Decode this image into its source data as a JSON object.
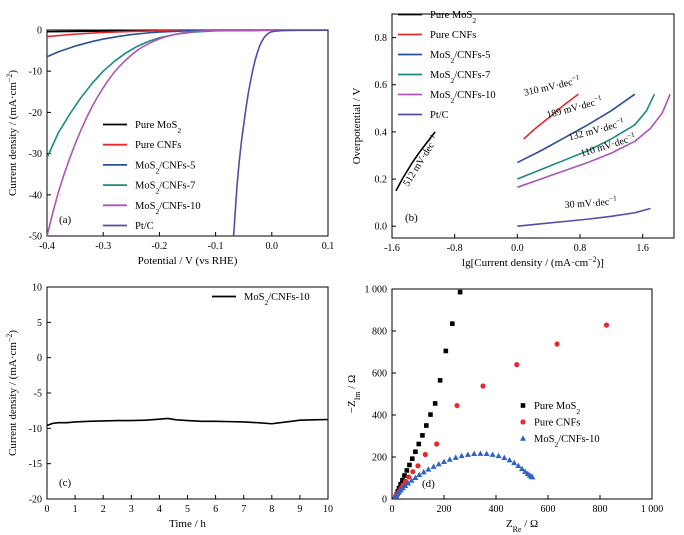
{
  "chart_data": [
    {
      "panel": "a",
      "type": "line",
      "panel_label": "(a)",
      "xlabel": "Potential / V (vs RHE)",
      "ylabel": "Current density / (mA·cm⁻²)",
      "xlim": [
        -0.4,
        0.1
      ],
      "ylim": [
        -50,
        0
      ],
      "xticks": [
        -0.4,
        -0.3,
        -0.2,
        -0.1,
        0.0,
        0.1
      ],
      "xtick_labels": [
        "-0.4",
        "-0.3",
        "-0.2",
        "-0.1",
        "0.0",
        "0.1"
      ],
      "yticks": [
        0,
        -10,
        -20,
        -30,
        -40,
        -50
      ],
      "ytick_labels": [
        "0",
        "-10",
        "-20",
        "-30",
        "-40",
        "-50"
      ],
      "legend_position": "bottom-right",
      "series": [
        {
          "name": "Pure MoS₂",
          "color": "#000000",
          "x": [
            -0.4,
            -0.3,
            -0.2,
            -0.1,
            0.0,
            0.1
          ],
          "y": [
            -0.4,
            -0.25,
            -0.15,
            -0.1,
            -0.05,
            -0.03
          ]
        },
        {
          "name": "Pure CNFs",
          "color": "#e8282c",
          "x": [
            -0.4,
            -0.35,
            -0.3,
            -0.25,
            -0.2,
            -0.1,
            0.0,
            0.1
          ],
          "y": [
            -1.6,
            -1.0,
            -0.6,
            -0.35,
            -0.2,
            -0.1,
            -0.05,
            -0.03
          ]
        },
        {
          "name": "MoS₂/CNFs-5",
          "color": "#2a4f9c",
          "x": [
            -0.4,
            -0.38,
            -0.35,
            -0.32,
            -0.3,
            -0.27,
            -0.25,
            -0.22,
            -0.2,
            -0.15,
            -0.1,
            0.0,
            0.1
          ],
          "y": [
            -6.5,
            -5.3,
            -3.9,
            -2.8,
            -2.2,
            -1.5,
            -1.1,
            -0.7,
            -0.5,
            -0.2,
            -0.1,
            -0.05,
            -0.03
          ]
        },
        {
          "name": "MoS₂/CNFs-7",
          "color": "#1c8a7e",
          "x": [
            -0.4,
            -0.39,
            -0.38,
            -0.36,
            -0.34,
            -0.32,
            -0.3,
            -0.28,
            -0.26,
            -0.24,
            -0.22,
            -0.2,
            -0.17,
            -0.14,
            -0.1,
            -0.05,
            0.0,
            0.1
          ],
          "y": [
            -31,
            -28,
            -25,
            -20.5,
            -16.5,
            -13,
            -10,
            -7.6,
            -5.6,
            -4.0,
            -2.8,
            -1.9,
            -1.0,
            -0.5,
            -0.2,
            -0.1,
            -0.05,
            -0.03
          ]
        },
        {
          "name": "MoS₂/CNFs-10",
          "color": "#b054b8",
          "x": [
            -0.4,
            -0.39,
            -0.38,
            -0.37,
            -0.36,
            -0.35,
            -0.34,
            -0.33,
            -0.32,
            -0.31,
            -0.3,
            -0.29,
            -0.28,
            -0.27,
            -0.26,
            -0.25,
            -0.24,
            -0.23,
            -0.22,
            -0.21,
            -0.2,
            -0.19,
            -0.18,
            -0.17,
            -0.16,
            -0.15,
            -0.14,
            -0.13,
            -0.12,
            -0.11,
            -0.1,
            -0.05,
            0.0,
            0.1
          ],
          "y": [
            -50,
            -44.5,
            -39.5,
            -35.2,
            -31.3,
            -27.7,
            -24.4,
            -21.4,
            -18.7,
            -16.2,
            -14.0,
            -12.0,
            -10.2,
            -8.7,
            -7.3,
            -6.1,
            -5.0,
            -4.1,
            -3.35,
            -2.7,
            -2.15,
            -1.7,
            -1.3,
            -1.0,
            -0.75,
            -0.55,
            -0.4,
            -0.3,
            -0.22,
            -0.16,
            -0.12,
            -0.06,
            -0.04,
            -0.03
          ]
        },
        {
          "name": "Pt/C",
          "color": "#5a4aa6",
          "x": [
            -0.068,
            -0.065,
            -0.062,
            -0.058,
            -0.054,
            -0.05,
            -0.046,
            -0.042,
            -0.038,
            -0.034,
            -0.03,
            -0.026,
            -0.022,
            -0.018,
            -0.014,
            -0.01,
            -0.006,
            -0.002,
            0.005,
            0.02,
            0.05,
            0.1
          ],
          "y": [
            -50,
            -44,
            -38,
            -32,
            -27,
            -23,
            -19,
            -15.5,
            -12.5,
            -9.8,
            -7.5,
            -5.6,
            -4.0,
            -2.8,
            -1.9,
            -1.25,
            -0.8,
            -0.5,
            -0.3,
            -0.15,
            -0.08,
            -0.05
          ]
        }
      ]
    },
    {
      "panel": "b",
      "type": "line",
      "panel_label": "(b)",
      "xlabel": "lg[Current density / (mA·cm⁻²)]",
      "ylabel": "Overpotential / V",
      "xlim": [
        -1.6,
        2.0
      ],
      "ylim": [
        -0.05,
        0.9
      ],
      "xticks": [
        -1.6,
        -0.8,
        0.0,
        0.8,
        1.6
      ],
      "xtick_labels": [
        "-1.6",
        "-0.8",
        "0.0",
        "0.8",
        "1.6"
      ],
      "yticks": [
        0.0,
        0.2,
        0.4,
        0.6,
        0.8
      ],
      "ytick_labels": [
        "0.0",
        "0.2",
        "0.4",
        "0.6",
        "0.8"
      ],
      "legend_position": "top-left",
      "series": [
        {
          "name": "Pure MoS₂",
          "color": "#000000",
          "x": [
            -1.55,
            -1.46,
            -1.35,
            -1.24,
            -1.13,
            -1.05
          ],
          "y": [
            0.15,
            0.205,
            0.265,
            0.318,
            0.365,
            0.4
          ]
        },
        {
          "name": "Pure CNFs",
          "color": "#e8282c",
          "x": [
            0.08,
            0.25,
            0.42,
            0.6,
            0.78
          ],
          "y": [
            0.37,
            0.42,
            0.465,
            0.515,
            0.56
          ]
        },
        {
          "name": "MoS₂/CNFs-5",
          "color": "#2a4f9c",
          "x": [
            0.0,
            0.3,
            0.6,
            0.9,
            1.2,
            1.5
          ],
          "y": [
            0.27,
            0.32,
            0.375,
            0.43,
            0.49,
            0.56
          ]
        },
        {
          "name": "MoS₂/CNFs-7",
          "color": "#1c8a7e",
          "x": [
            0.0,
            0.3,
            0.6,
            0.9,
            1.2,
            1.5,
            1.65,
            1.75
          ],
          "y": [
            0.2,
            0.24,
            0.28,
            0.32,
            0.37,
            0.43,
            0.49,
            0.56
          ]
        },
        {
          "name": "MoS₂/CNFs-10",
          "color": "#b054b8",
          "x": [
            0.0,
            0.3,
            0.6,
            0.9,
            1.2,
            1.5,
            1.7,
            1.85,
            1.95
          ],
          "y": [
            0.165,
            0.2,
            0.235,
            0.27,
            0.31,
            0.36,
            0.415,
            0.48,
            0.56
          ]
        },
        {
          "name": "Pt/C",
          "color": "#5a4aa6",
          "x": [
            0.0,
            0.3,
            0.6,
            0.9,
            1.2,
            1.5,
            1.7
          ],
          "y": [
            0.0,
            0.01,
            0.02,
            0.03,
            0.042,
            0.057,
            0.075
          ]
        }
      ],
      "annotations": [
        {
          "text": "512 mV·dec⁻¹",
          "x": -1.2,
          "y": 0.27,
          "angle": -58
        },
        {
          "text": "310 mV·dec⁻¹",
          "x": 0.45,
          "y": 0.58,
          "angle": -13
        },
        {
          "text": "189 mV·dec⁻¹",
          "x": 0.74,
          "y": 0.49,
          "angle": -15
        },
        {
          "text": "132 mV·dec⁻¹",
          "x": 1.02,
          "y": 0.395,
          "angle": -15
        },
        {
          "text": "110 mV·dec⁻¹",
          "x": 1.17,
          "y": 0.33,
          "angle": -17
        },
        {
          "text": "30 mV·dec⁻¹",
          "x": 0.94,
          "y": 0.085,
          "angle": -4
        }
      ]
    },
    {
      "panel": "c",
      "type": "line",
      "panel_label": "(c)",
      "xlabel": "Time / h",
      "ylabel": "Current density / (mA·cm⁻²)",
      "xlim": [
        0,
        10
      ],
      "ylim": [
        -20,
        10
      ],
      "xticks": [
        0,
        1,
        2,
        3,
        4,
        5,
        6,
        7,
        8,
        9,
        10
      ],
      "xtick_labels": [
        "0",
        "1",
        "2",
        "3",
        "4",
        "5",
        "6",
        "7",
        "8",
        "9",
        "10"
      ],
      "yticks": [
        10,
        5,
        0,
        -5,
        -10,
        -15,
        -20
      ],
      "ytick_labels": [
        "10",
        "5",
        "0",
        "-5",
        "-10",
        "-15",
        "-20"
      ],
      "legend_position": "top-right",
      "series": [
        {
          "name": "MoS₂/CNFs-10",
          "color": "#000000",
          "x": [
            0,
            0.2,
            0.4,
            0.7,
            1.0,
            1.5,
            2.0,
            2.5,
            3.0,
            3.5,
            4.0,
            4.3,
            4.6,
            5.0,
            5.5,
            6.0,
            6.5,
            7.0,
            7.5,
            8.0,
            8.3,
            8.7,
            9.0,
            9.5,
            10.0
          ],
          "y": [
            -9.6,
            -9.3,
            -9.2,
            -9.2,
            -9.1,
            -9.0,
            -8.95,
            -8.9,
            -8.9,
            -8.85,
            -8.7,
            -8.6,
            -8.8,
            -8.9,
            -9.0,
            -9.0,
            -9.05,
            -9.1,
            -9.2,
            -9.35,
            -9.2,
            -9.0,
            -8.85,
            -8.8,
            -8.75
          ]
        }
      ]
    },
    {
      "panel": "d",
      "type": "scatter",
      "panel_label": "(d)",
      "xlabel": "Z_Re / Ω",
      "ylabel": "−Z_Im / Ω",
      "xlim": [
        0,
        1000
      ],
      "ylim": [
        0,
        1000
      ],
      "xticks": [
        0,
        200,
        400,
        600,
        800,
        1000
      ],
      "xtick_labels": [
        "0",
        "200",
        "400",
        "600",
        "800",
        "1 000"
      ],
      "yticks": [
        0,
        200,
        400,
        600,
        800,
        1000
      ],
      "ytick_labels": [
        "0",
        "200",
        "400",
        "600",
        "800",
        "1 000"
      ],
      "legend_position": "bottom-right",
      "series": [
        {
          "name": "Pure MoS₂",
          "color": "#000000",
          "marker": "square",
          "x": [
            14,
            18,
            22,
            27,
            33,
            40,
            48,
            57,
            67,
            78,
            90,
            103,
            117,
            132,
            148,
            166,
            185,
            207,
            232,
            262
          ],
          "y": [
            10,
            22,
            36,
            52,
            70,
            90,
            112,
            136,
            162,
            192,
            225,
            262,
            303,
            350,
            402,
            455,
            565,
            705,
            835,
            985
          ]
        },
        {
          "name": "Pure CNFs",
          "color": "#e8282c",
          "marker": "circle",
          "x": [
            12,
            16,
            21,
            27,
            34,
            42,
            52,
            64,
            80,
            100,
            128,
            172,
            250,
            350,
            480,
            635,
            825
          ],
          "y": [
            6,
            14,
            24,
            36,
            50,
            66,
            84,
            105,
            130,
            158,
            212,
            262,
            445,
            538,
            640,
            738,
            828
          ]
        },
        {
          "name": "MoS₂/CNFs-10",
          "color": "#2f63c2",
          "marker": "triangle",
          "x": [
            12,
            16,
            21,
            27,
            34,
            42,
            51,
            62,
            75,
            90,
            105,
            122,
            140,
            160,
            180,
            200,
            222,
            245,
            268,
            292,
            316,
            340,
            364,
            387,
            410,
            432,
            452,
            470,
            486,
            500,
            512,
            522,
            530,
            536,
            540
          ],
          "y": [
            6,
            14,
            23,
            32,
            42,
            52,
            63,
            75,
            88,
            101,
            115,
            128,
            141,
            154,
            166,
            177,
            188,
            197,
            205,
            211,
            215,
            216,
            215,
            211,
            205,
            196,
            185,
            172,
            158,
            143,
            130,
            120,
            112,
            107,
            104
          ]
        }
      ]
    }
  ]
}
